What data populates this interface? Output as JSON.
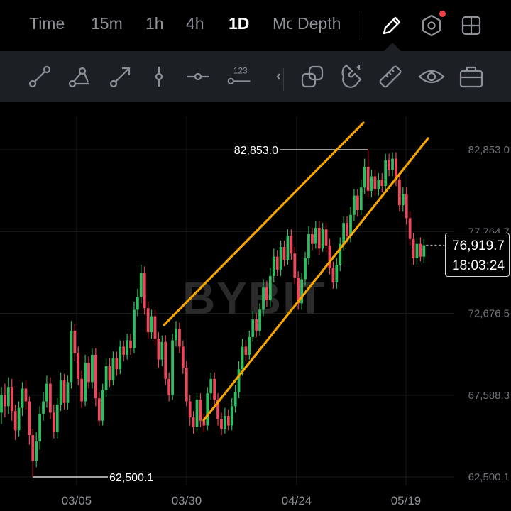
{
  "tabs": [
    {
      "label": "Time",
      "active": false
    },
    {
      "label": "15m",
      "active": false
    },
    {
      "label": "1h",
      "active": false
    },
    {
      "label": "4h",
      "active": false
    },
    {
      "label": "1D",
      "active": true
    },
    {
      "label": "Mo",
      "active": false
    },
    {
      "label": "Depth",
      "active": false
    }
  ],
  "top_icons": [
    "pencil-icon",
    "settings-hex-icon",
    "grid-layout-icon"
  ],
  "tools": [
    "line-segment-icon",
    "angle-line-icon",
    "arrow-line-icon",
    "vertical-line-icon",
    "horizontal-line-icon",
    "price-label-line-icon",
    "collapse-icon",
    "stack-icon",
    "magnet-icon",
    "ruler-icon",
    "eye-icon",
    "toolbox-icon"
  ],
  "tool_label_123": "123",
  "colors": {
    "up": "#2ebd5f",
    "down": "#f0455a",
    "channel": "#f7a600",
    "grid": "#1a1c20"
  },
  "watermark": "BYBIT",
  "current_price": "76,919.7",
  "countdown": "18:03:24",
  "chart_data": {
    "type": "candlestick",
    "y_ticks": [
      "82,853.0",
      "77,764.7",
      "72,676.5",
      "67,588.3",
      "62,500.1"
    ],
    "ylim": [
      62500.1,
      82853.0
    ],
    "x_ticks": [
      "03/05",
      "03/30",
      "04/24",
      "05/19"
    ],
    "annotations": {
      "high": "82,853.0",
      "low": "62,500.1"
    },
    "channel": {
      "upper": [
        [
          "03/23",
          72676.5
        ],
        [
          "04/28",
          84400
        ]
      ],
      "lower": [
        [
          "03/31",
          63200
        ],
        [
          "05/20",
          83500
        ]
      ]
    },
    "candles": [
      [
        66500,
        67600,
        68100,
        65800
      ],
      [
        67600,
        66900,
        68300,
        66200
      ],
      [
        66900,
        68100,
        68700,
        66400
      ],
      [
        68100,
        66600,
        68600,
        66000
      ],
      [
        66600,
        65400,
        67000,
        64800
      ],
      [
        65400,
        66800,
        67200,
        65000
      ],
      [
        66800,
        68000,
        68400,
        66300
      ],
      [
        68000,
        67200,
        68500,
        66700
      ],
      [
        67200,
        65100,
        67500,
        64500
      ],
      [
        65100,
        63500,
        65500,
        62500
      ],
      [
        63500,
        64700,
        65300,
        63100
      ],
      [
        64700,
        66400,
        66900,
        64200
      ],
      [
        66400,
        67200,
        67800,
        66000
      ],
      [
        67200,
        68300,
        68800,
        66800
      ],
      [
        68300,
        66500,
        68700,
        66100
      ],
      [
        66500,
        65300,
        67000,
        64900
      ],
      [
        65300,
        67000,
        67400,
        64900
      ],
      [
        67000,
        68500,
        69000,
        66600
      ],
      [
        68500,
        67100,
        68900,
        66700
      ],
      [
        67100,
        68400,
        68800,
        66700
      ],
      [
        68400,
        71600,
        72200,
        68000
      ],
      [
        71600,
        70200,
        72000,
        69700
      ],
      [
        70200,
        68600,
        70600,
        68200
      ],
      [
        68600,
        67200,
        69100,
        66800
      ],
      [
        67200,
        69600,
        70100,
        66900
      ],
      [
        69600,
        68400,
        70000,
        68000
      ],
      [
        68400,
        70100,
        70500,
        68000
      ],
      [
        70100,
        67400,
        70500,
        66900
      ],
      [
        67400,
        66000,
        67800,
        65700
      ],
      [
        66000,
        67900,
        68300,
        65700
      ],
      [
        67900,
        69400,
        69900,
        67500
      ],
      [
        69400,
        68500,
        69900,
        68100
      ],
      [
        68500,
        69900,
        70300,
        68200
      ],
      [
        69900,
        69200,
        70300,
        68800
      ],
      [
        69200,
        70600,
        71000,
        68900
      ],
      [
        70600,
        70100,
        71000,
        69700
      ],
      [
        70100,
        71000,
        71400,
        69800
      ],
      [
        71000,
        70500,
        71400,
        70100
      ],
      [
        70500,
        72900,
        73400,
        70200
      ],
      [
        72900,
        73700,
        74200,
        72500
      ],
      [
        73700,
        75200,
        75700,
        73300
      ],
      [
        75200,
        73000,
        75600,
        72600
      ],
      [
        73000,
        71500,
        73400,
        71100
      ],
      [
        71500,
        72500,
        72900,
        71100
      ],
      [
        72500,
        71100,
        72900,
        70700
      ],
      [
        71100,
        69800,
        71500,
        69300
      ],
      [
        69800,
        70900,
        71300,
        69400
      ],
      [
        70900,
        68600,
        71300,
        68200
      ],
      [
        68600,
        67600,
        69000,
        67200
      ],
      [
        67600,
        71000,
        71400,
        67300
      ],
      [
        71000,
        71700,
        72200,
        70600
      ],
      [
        71700,
        70600,
        72100,
        70200
      ],
      [
        70600,
        69300,
        71000,
        68900
      ],
      [
        69300,
        67200,
        69700,
        66900
      ],
      [
        67200,
        66200,
        67600,
        65700
      ],
      [
        66200,
        65600,
        66600,
        65200
      ],
      [
        65600,
        67300,
        67700,
        65300
      ],
      [
        67300,
        66000,
        67700,
        65600
      ],
      [
        66000,
        65700,
        66400,
        65300
      ],
      [
        65700,
        67700,
        68100,
        65400
      ],
      [
        67700,
        68600,
        69000,
        67300
      ],
      [
        68600,
        67300,
        69000,
        66900
      ],
      [
        67300,
        66100,
        67700,
        65700
      ],
      [
        66100,
        65500,
        66500,
        65100
      ],
      [
        65500,
        66300,
        66800,
        65200
      ],
      [
        66300,
        65700,
        66700,
        65400
      ],
      [
        65700,
        66900,
        67400,
        65400
      ],
      [
        66900,
        67800,
        68200,
        66500
      ],
      [
        67800,
        69200,
        69700,
        67400
      ],
      [
        69200,
        70600,
        71100,
        68800
      ],
      [
        70600,
        70100,
        71000,
        69700
      ],
      [
        70100,
        71200,
        71600,
        69800
      ],
      [
        71200,
        72300,
        72800,
        70900
      ],
      [
        72300,
        71600,
        72700,
        71200
      ],
      [
        71600,
        72900,
        73300,
        71300
      ],
      [
        72900,
        74300,
        74800,
        72500
      ],
      [
        74300,
        73500,
        74700,
        73100
      ],
      [
        73500,
        75000,
        75500,
        73100
      ],
      [
        75000,
        76200,
        76700,
        74600
      ],
      [
        76200,
        75400,
        76600,
        75000
      ],
      [
        75400,
        76800,
        77200,
        75000
      ],
      [
        76800,
        76000,
        77200,
        75600
      ],
      [
        76000,
        77500,
        77900,
        75700
      ],
      [
        77500,
        76400,
        77900,
        76000
      ],
      [
        76400,
        74900,
        76800,
        74500
      ],
      [
        74900,
        73300,
        75300,
        72900
      ],
      [
        73300,
        74800,
        75200,
        72900
      ],
      [
        74800,
        76100,
        76500,
        74400
      ],
      [
        76100,
        77600,
        78100,
        75700
      ],
      [
        77600,
        77000,
        78000,
        76600
      ],
      [
        77000,
        78000,
        78400,
        76700
      ],
      [
        78000,
        76700,
        78400,
        76300
      ],
      [
        76700,
        77900,
        78300,
        76500
      ],
      [
        77900,
        76900,
        78300,
        76500
      ],
      [
        76900,
        75500,
        77300,
        75100
      ],
      [
        75500,
        74600,
        75900,
        74200
      ],
      [
        74600,
        75700,
        76100,
        74200
      ],
      [
        75700,
        77000,
        77400,
        75300
      ],
      [
        77000,
        78300,
        78700,
        76600
      ],
      [
        78300,
        77500,
        78700,
        77100
      ],
      [
        77500,
        78800,
        79300,
        77100
      ],
      [
        78800,
        80000,
        80400,
        78400
      ],
      [
        80000,
        79100,
        80400,
        78700
      ],
      [
        79100,
        80500,
        81000,
        78800
      ],
      [
        80500,
        81800,
        82300,
        80100
      ],
      [
        81800,
        80300,
        82853,
        79900
      ],
      [
        80300,
        81200,
        81600,
        79900
      ],
      [
        81200,
        80400,
        81600,
        80000
      ],
      [
        80400,
        81000,
        81400,
        80000
      ],
      [
        81000,
        80600,
        81400,
        80200
      ],
      [
        80600,
        82200,
        82600,
        80300
      ],
      [
        82200,
        81600,
        82600,
        81200
      ],
      [
        81600,
        82300,
        82700,
        81200
      ],
      [
        82300,
        81000,
        82700,
        80600
      ],
      [
        81000,
        79400,
        81400,
        79000
      ],
      [
        79400,
        80100,
        80500,
        79000
      ],
      [
        80100,
        78600,
        80500,
        78200
      ],
      [
        78600,
        77300,
        79000,
        76900
      ],
      [
        77300,
        76100,
        77700,
        75700
      ],
      [
        76100,
        77000,
        77400,
        75700
      ],
      [
        77000,
        76200,
        77400,
        75900
      ],
      [
        76200,
        76919.7,
        77300,
        75800
      ]
    ]
  }
}
